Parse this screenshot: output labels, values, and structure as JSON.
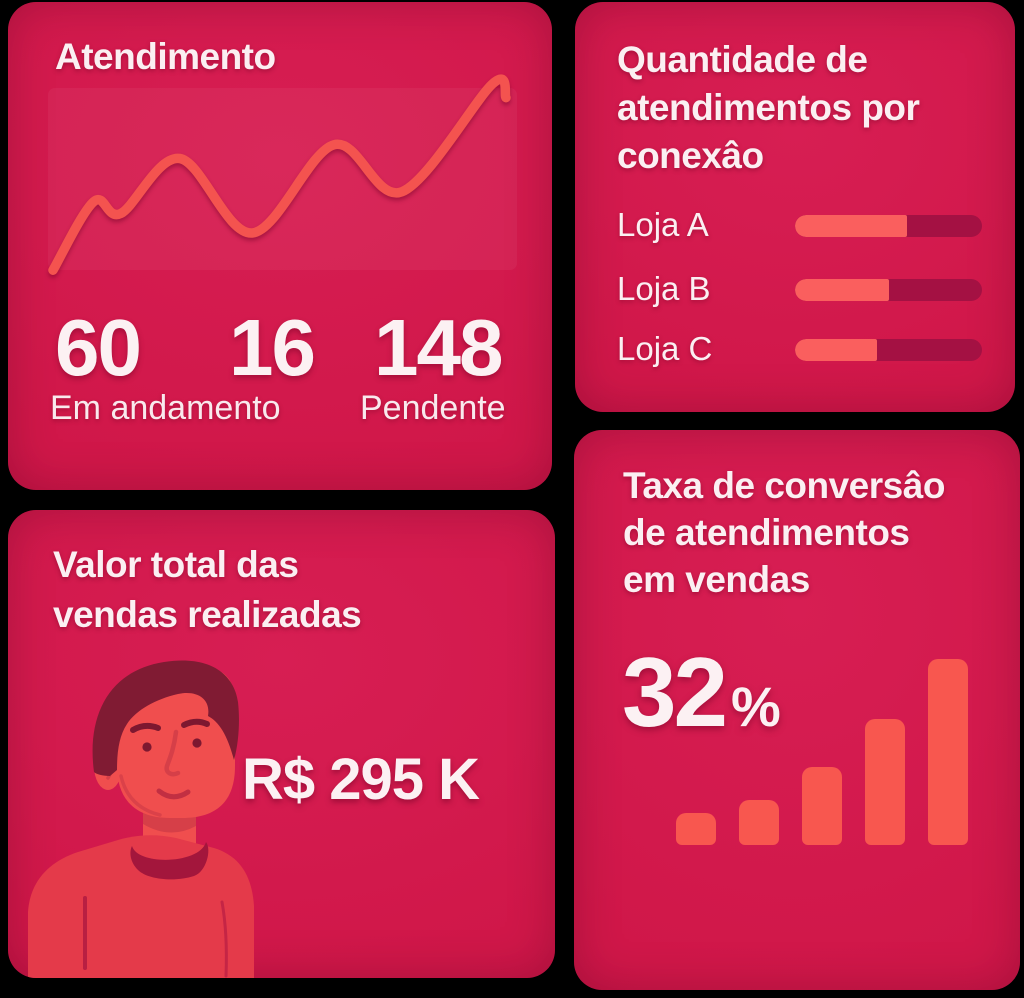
{
  "colors": {
    "page_background": "#000000",
    "card_background": "#d01749",
    "text": "#fcf1f3",
    "accent_salmon": "#f8574f",
    "progress_track": "#a41143",
    "hair": "#801b33",
    "skin": "#f04e4e",
    "shirt": "#e43a4a"
  },
  "cards": {
    "atendimento": {
      "title": "Atendimento",
      "stats": {
        "values": [
          "60",
          "16",
          "148"
        ],
        "labels": [
          "Em andamento",
          "Pendente"
        ]
      }
    },
    "conexao": {
      "title_lines": [
        "Quantidade de",
        "atendimentos por",
        "conexâo"
      ],
      "rows": [
        {
          "label": "Loja A"
        },
        {
          "label": "Loja B"
        },
        {
          "label": "Loja C"
        }
      ]
    },
    "vendas": {
      "title_lines": [
        "Valor total das",
        "vendas realizadas"
      ],
      "amount": "R$ 295 K"
    },
    "conversao": {
      "title_lines": [
        "Taxa de conversâo",
        "de atendimentos",
        "em vendas"
      ],
      "rate_value": "32",
      "rate_unit": "%"
    }
  },
  "chart_data": [
    {
      "type": "line",
      "title": "Atendimento",
      "style": "smooth-sparkline, no axes, no gridlines",
      "x": [
        0,
        0.09,
        0.15,
        0.28,
        0.44,
        0.62,
        0.77,
        0.97,
        1.0
      ],
      "values": [
        5,
        40,
        34,
        62,
        24,
        69,
        45,
        100,
        93
      ],
      "ylim": [
        0,
        100
      ],
      "line_color": "#f4534f"
    },
    {
      "type": "bar",
      "orientation": "horizontal",
      "title": "Quantidade de atendimentos por conexâo",
      "categories": [
        "Loja A",
        "Loja B",
        "Loja C"
      ],
      "values": [
        60,
        50,
        44
      ],
      "unit": "percent of track filled",
      "fill_color": "#fa5f5e",
      "track_color": "#a41143"
    },
    {
      "type": "bar",
      "orientation": "vertical",
      "title": "Taxa de conversâo de atendimentos em vendas",
      "categories": [
        "1",
        "2",
        "3",
        "4",
        "5"
      ],
      "values": [
        17,
        24,
        42,
        68,
        100
      ],
      "ylim": [
        0,
        100
      ],
      "annotation": "32%",
      "bar_color": "#f8574f",
      "axes": false
    }
  ]
}
